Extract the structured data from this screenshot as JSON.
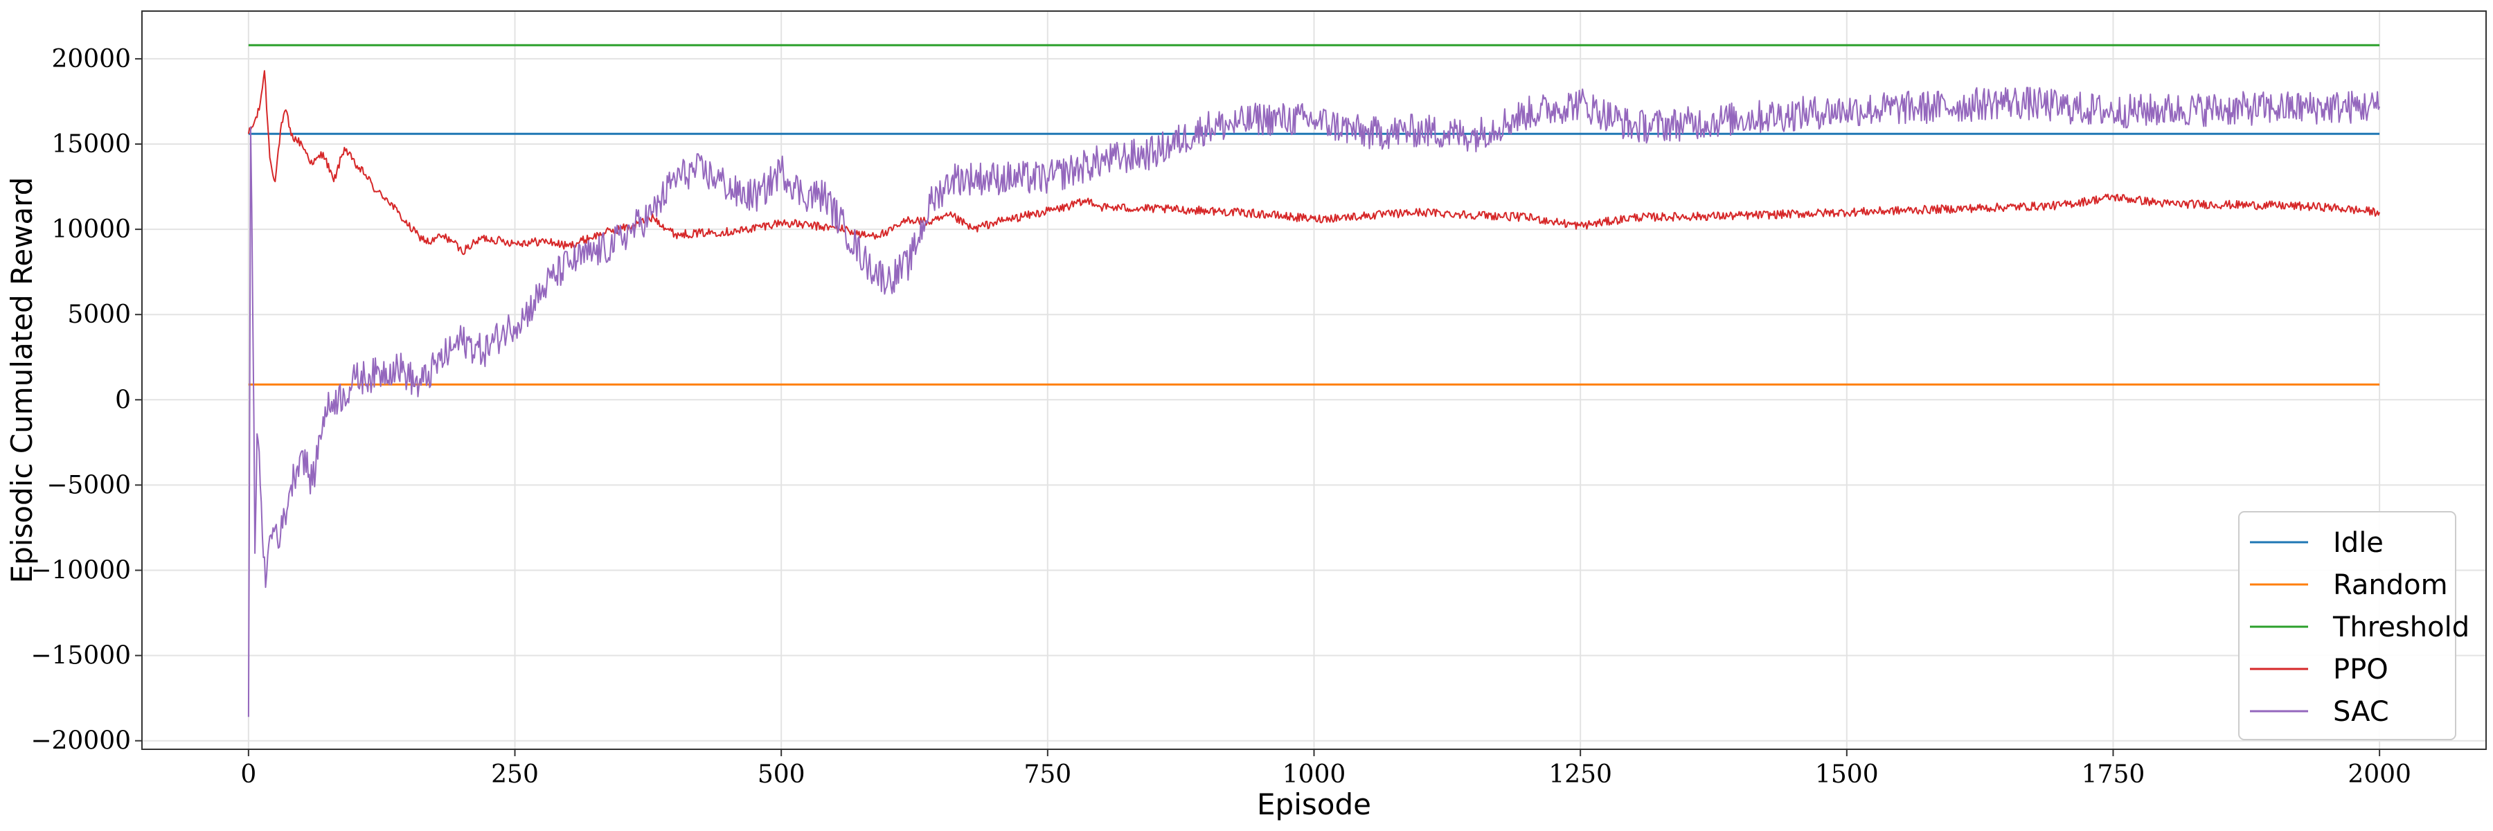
{
  "chart_data": {
    "type": "line",
    "title": "",
    "xlabel": "Episode",
    "ylabel": "Episodic Cumulated Reward",
    "xlim": [
      -100,
      2100
    ],
    "ylim": [
      -20500,
      22800
    ],
    "xticks": [
      0,
      250,
      500,
      750,
      1000,
      1250,
      1500,
      1750,
      2000
    ],
    "xtick_labels": [
      "0",
      "250",
      "500",
      "750",
      "1000",
      "1250",
      "1500",
      "1750",
      "2000"
    ],
    "yticks": [
      -20000,
      -15000,
      -10000,
      -5000,
      0,
      5000,
      10000,
      15000,
      20000
    ],
    "ytick_labels": [
      "−20000",
      "−15000",
      "−10000",
      "−5000",
      "0",
      "5000",
      "10000",
      "15000",
      "20000"
    ],
    "grid": true,
    "legend_position": "lower-right",
    "series": [
      {
        "name": "Idle",
        "color": "#1f77b4",
        "kind": "constant",
        "x": [
          0,
          2000
        ],
        "y": [
          15600,
          15600
        ]
      },
      {
        "name": "Random",
        "color": "#ff7f0e",
        "kind": "constant",
        "x": [
          0,
          2000
        ],
        "y": [
          900,
          900
        ]
      },
      {
        "name": "Threshold",
        "color": "#2ca02c",
        "kind": "constant",
        "x": [
          0,
          2000
        ],
        "y": [
          20800,
          20800
        ]
      },
      {
        "name": "PPO",
        "color": "#d62728",
        "kind": "noisy",
        "noise": 250,
        "x": [
          0,
          5,
          10,
          15,
          20,
          25,
          30,
          35,
          40,
          50,
          60,
          70,
          80,
          90,
          100,
          110,
          120,
          130,
          140,
          150,
          160,
          170,
          180,
          190,
          200,
          220,
          250,
          280,
          300,
          320,
          340,
          360,
          380,
          400,
          430,
          460,
          500,
          530,
          560,
          580,
          600,
          620,
          640,
          660,
          680,
          700,
          730,
          760,
          790,
          800,
          850,
          900,
          950,
          1000,
          1100,
          1200,
          1250,
          1300,
          1400,
          1500,
          1600,
          1700,
          1750,
          1800,
          1900,
          1950,
          2000
        ],
        "y": [
          15600,
          16200,
          17000,
          19300,
          14200,
          12800,
          15800,
          17000,
          15500,
          15000,
          13800,
          14500,
          12800,
          14800,
          13800,
          13200,
          12200,
          11800,
          11000,
          10200,
          9600,
          9200,
          9600,
          9400,
          8700,
          9500,
          9200,
          9300,
          9000,
          9500,
          9900,
          10200,
          10700,
          9700,
          9800,
          9900,
          10400,
          10200,
          10000,
          9600,
          9800,
          10600,
          10400,
          10800,
          10000,
          10400,
          10800,
          11200,
          11700,
          11300,
          11200,
          11100,
          10900,
          10600,
          11000,
          10700,
          10200,
          10700,
          10800,
          11000,
          11200,
          11400,
          11900,
          11500,
          11400,
          11300,
          11000
        ]
      },
      {
        "name": "SAC",
        "color": "#9467bd",
        "kind": "noisy",
        "noise": 1000,
        "x": [
          0,
          2,
          4,
          6,
          8,
          12,
          16,
          20,
          25,
          30,
          40,
          50,
          60,
          70,
          80,
          90,
          100,
          120,
          140,
          160,
          180,
          200,
          220,
          240,
          260,
          280,
          300,
          320,
          340,
          360,
          380,
          400,
          420,
          440,
          460,
          480,
          500,
          520,
          540,
          560,
          580,
          600,
          620,
          640,
          660,
          700,
          750,
          800,
          850,
          900,
          930,
          950,
          1000,
          1050,
          1100,
          1150,
          1200,
          1250,
          1300,
          1350,
          1400,
          1500,
          1600,
          1650,
          1700,
          1750,
          1800,
          1900,
          2000
        ],
        "y": [
          -18600,
          16000,
          5000,
          -9000,
          -2000,
          -6000,
          -11000,
          -8000,
          -7500,
          -8000,
          -5000,
          -3000,
          -5000,
          -1000,
          0,
          300,
          1200,
          1500,
          2000,
          800,
          2300,
          3500,
          2800,
          4000,
          5000,
          6800,
          8000,
          8500,
          9000,
          10000,
          11000,
          13000,
          13500,
          13000,
          12000,
          12000,
          13500,
          12000,
          12000,
          10000,
          8000,
          7000,
          8000,
          11500,
          13000,
          13000,
          13000,
          14000,
          14500,
          16000,
          16200,
          16500,
          16400,
          15600,
          15800,
          15500,
          16800,
          17400,
          16000,
          16200,
          16500,
          17000,
          17200,
          17500,
          17200,
          16900,
          17000,
          17100,
          17200
        ]
      }
    ]
  }
}
